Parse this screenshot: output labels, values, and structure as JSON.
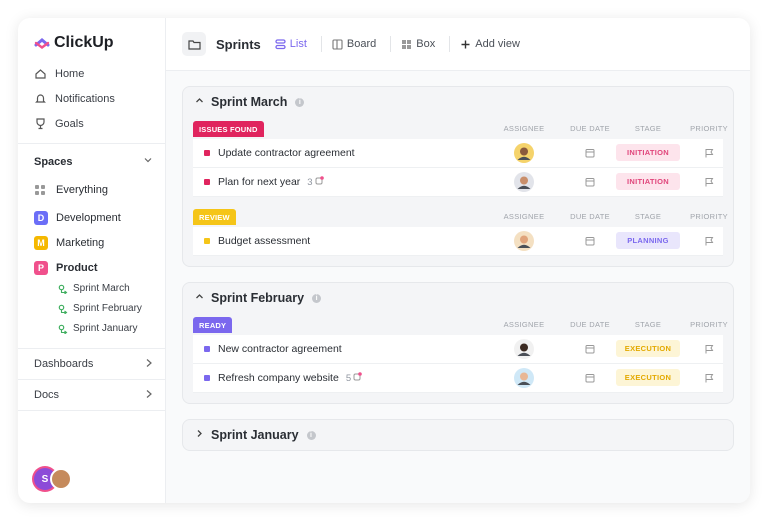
{
  "sidebar": {
    "logo": "ClickUp",
    "nav": [
      "Home",
      "Notifications",
      "Goals"
    ],
    "spaces_title": "Spaces",
    "everything": "Everything",
    "spaces": [
      {
        "icon": "D",
        "label": "Development",
        "color": "#6b6ef7"
      },
      {
        "icon": "M",
        "label": "Marketing",
        "color": "#f5b800"
      },
      {
        "icon": "P",
        "label": "Product",
        "color": "#f0508c"
      }
    ],
    "sprints": [
      "Sprint March",
      "Sprint February",
      "Sprint January"
    ],
    "sections": [
      "Dashboards",
      "Docs"
    ],
    "avatar": "S"
  },
  "toolbar": {
    "title": "Sprints",
    "views": [
      "List",
      "Board",
      "Box"
    ],
    "add_view": "Add view"
  },
  "columns": [
    "ASSIGNEE",
    "DUE DATE",
    "STAGE",
    "PRIORITY"
  ],
  "sprints": [
    {
      "title": "Sprint March",
      "groups": [
        {
          "status": "ISSUES FOUND",
          "color": "#e0245e",
          "tasks": [
            {
              "name": "Update contractor agreement",
              "stage": "INITIATION",
              "stage_color": "#e0457b",
              "stage_bg": "#fde4ec"
            },
            {
              "name": "Plan for next year",
              "count": 3,
              "stage": "INITIATION",
              "stage_color": "#e0457b",
              "stage_bg": "#fde4ec"
            }
          ]
        },
        {
          "status": "REVIEW",
          "color": "#f5c518",
          "tasks": [
            {
              "name": "Budget assessment",
              "stage": "PLANNING",
              "stage_color": "#7b68ee",
              "stage_bg": "#e9e6fc"
            }
          ]
        }
      ]
    },
    {
      "title": "Sprint February",
      "groups": [
        {
          "status": "READY",
          "color": "#7b68ee",
          "tasks": [
            {
              "name": "New contractor agreement",
              "stage": "EXECUTION",
              "stage_color": "#e3a900",
              "stage_bg": "#fdf5d6"
            },
            {
              "name": "Refresh company website",
              "count": 5,
              "stage": "EXECUTION",
              "stage_color": "#e3a900",
              "stage_bg": "#fdf5d6"
            }
          ]
        }
      ]
    },
    {
      "title": "Sprint January",
      "groups": []
    }
  ]
}
